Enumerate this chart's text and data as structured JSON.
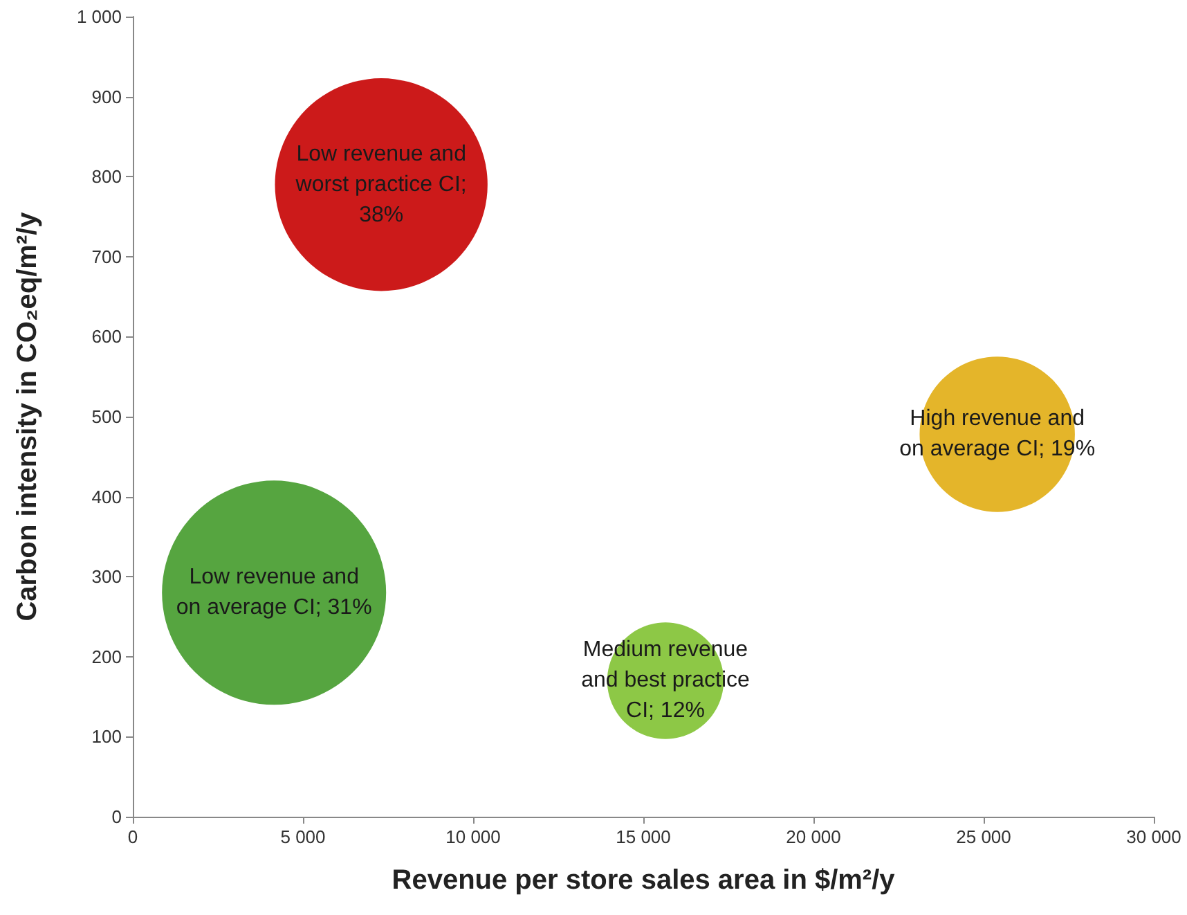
{
  "chart_data": {
    "type": "bubble",
    "xlabel": "Revenue per store sales area in $/m²/y",
    "ylabel": "Carbon intensity in CO₂eq/m²/y",
    "x": [
      7300,
      4150,
      25400,
      15650
    ],
    "values": [
      790,
      280,
      478,
      170
    ],
    "sizes": [
      0.9,
      1,
      0.48,
      0.27
    ],
    "colors": [
      "#cc1a1a",
      "#56a540",
      "#e4b52a",
      "#8dc846"
    ],
    "xlim": [
      0,
      30000
    ],
    "xticks": [
      0,
      {
        "value": 5000,
        "label": "5 000"
      },
      {
        "value": 10000,
        "label": "10 000"
      },
      {
        "value": 15000,
        "label": "15 000"
      },
      {
        "value": 20000,
        "label": "20 000"
      },
      {
        "value": 25000,
        "label": "25 000"
      },
      {
        "value": 30000,
        "label": "30 000"
      }
    ],
    "ylim": [
      0,
      1000
    ],
    "yticks": [
      0,
      100,
      200,
      300,
      400,
      500,
      600,
      700,
      800,
      900,
      {
        "value": 1000,
        "label": "1 000"
      }
    ],
    "grid": false,
    "annotations": [
      {
        "text": "Low revenue and\nworst practice CI;\n38%",
        "x": 7300,
        "y": 790
      },
      {
        "text": "Low revenue and\non average CI; 31%",
        "x": 4150,
        "y": 280
      },
      {
        "text": "High revenue and\non average CI; 19%",
        "x": 25400,
        "y": 478
      },
      {
        "text": "Medium revenue\nand best practice\nCI; 12%",
        "x": 15650,
        "y": 170
      }
    ]
  }
}
